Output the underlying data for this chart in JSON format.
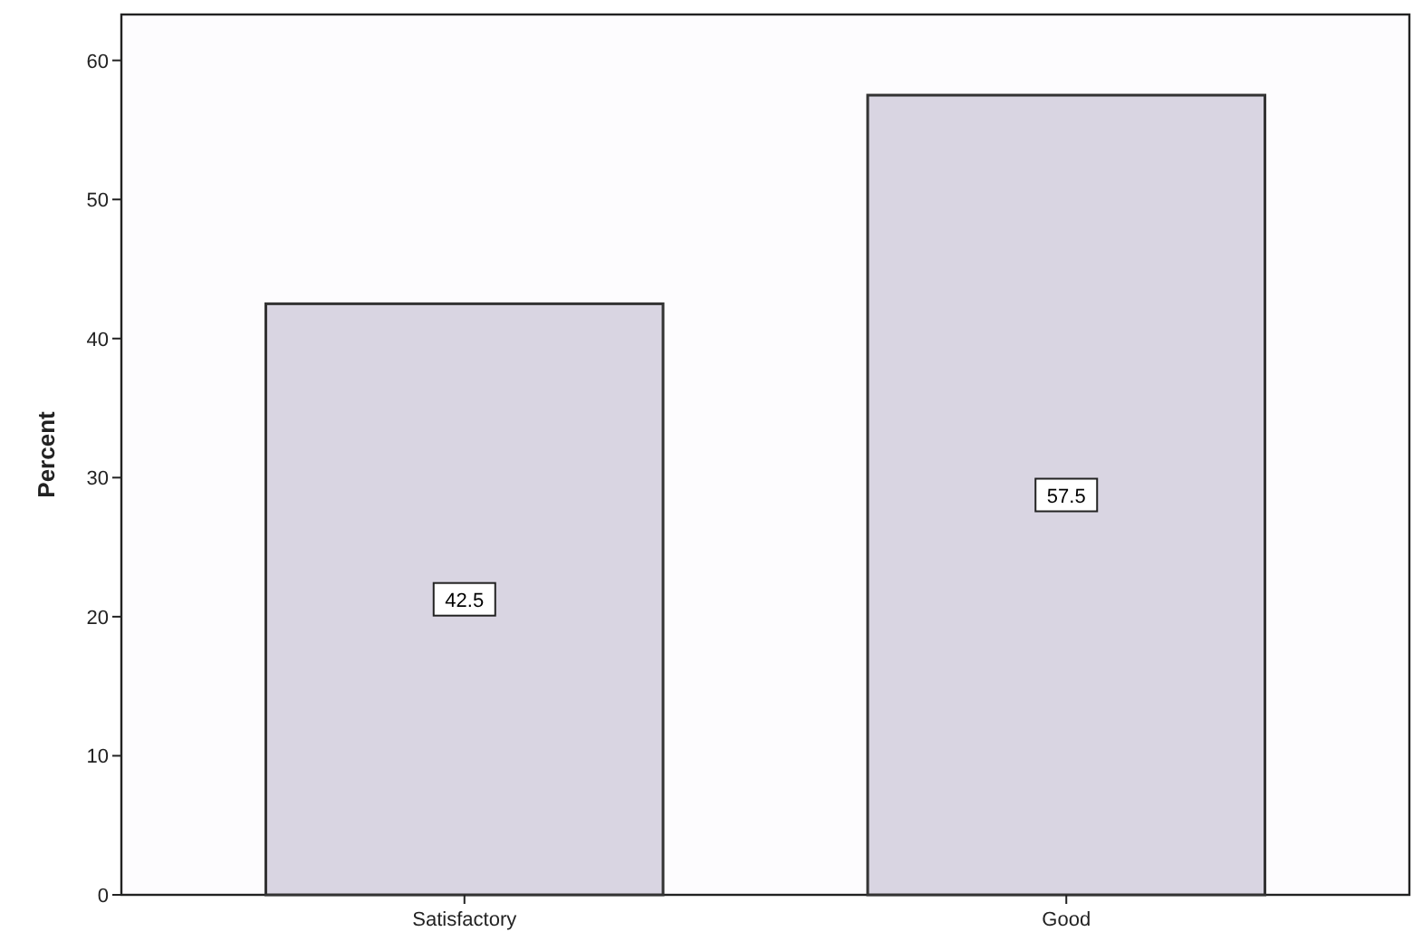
{
  "chart_data": {
    "type": "bar",
    "ylabel": "Percent",
    "categories": [
      "Satisfactory",
      "Good"
    ],
    "values": [
      42.5,
      57.5
    ],
    "color": "#d9d5e2",
    "ylim": [
      0,
      63.3
    ],
    "yticks": [
      0,
      10,
      20,
      30,
      40,
      50,
      60
    ],
    "data_labels": true,
    "grid": false
  }
}
